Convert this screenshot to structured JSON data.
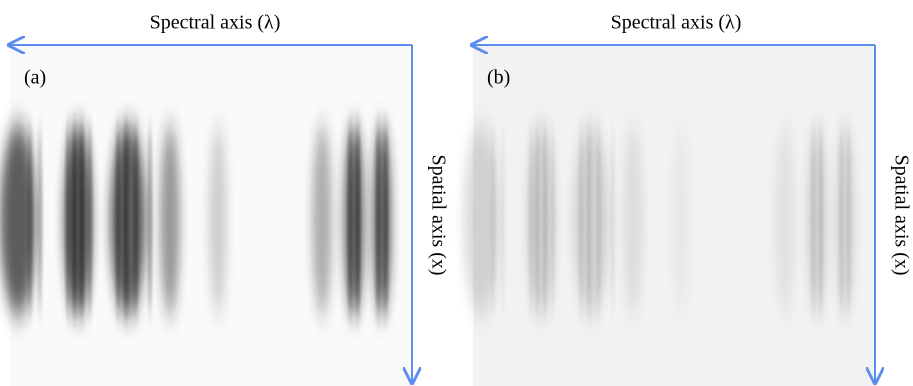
{
  "panels": [
    {
      "label": "(a)",
      "spectral_axis": "Spectral axis (λ)",
      "spatial_axis": "Spatial axis (x)"
    },
    {
      "label": "(b)",
      "spectral_axis": "Spectral axis (λ)",
      "spatial_axis": "Spatial axis (x)"
    }
  ]
}
